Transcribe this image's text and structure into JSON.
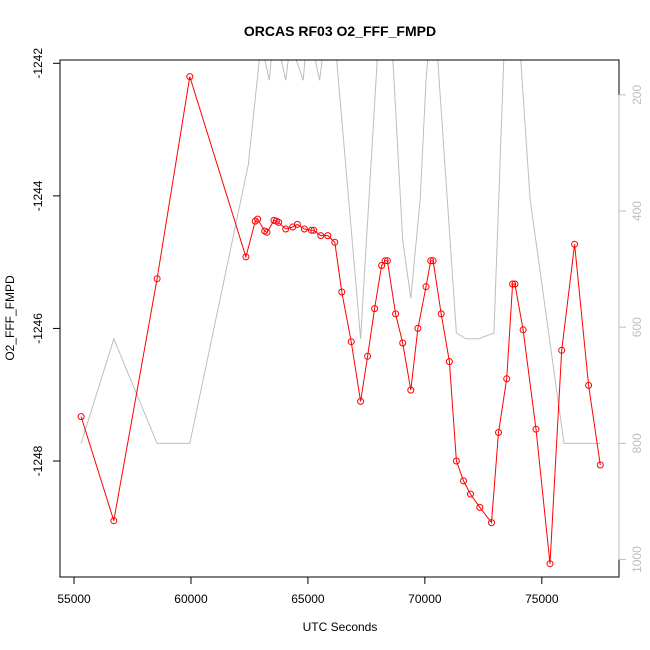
{
  "chart_data": {
    "type": "line",
    "title": "ORCAS RF03 O2_FFF_FMPD",
    "xlabel": "UTC Seconds",
    "ylabel": "O2_FFF_FMPD",
    "xlim": [
      54400,
      78300
    ],
    "ylim": [
      -1249.75,
      -1241.95
    ],
    "x_ticks": [
      55000,
      60000,
      65000,
      70000,
      75000
    ],
    "y_ticks": [
      -1242,
      -1244,
      -1246,
      -1248
    ],
    "y2_ticks": [
      200,
      400,
      600,
      800,
      1000
    ],
    "y2_reversed": true,
    "y2_lim": [
      1030,
      140
    ],
    "colors": {
      "primary": "#ff0000",
      "secondary": "#bebebe",
      "axis": "#000000"
    },
    "series": [
      {
        "role": "primary",
        "marker": "open-circle",
        "x": [
          55300,
          56700,
          58550,
          59950,
          62350,
          62750,
          62850,
          63150,
          63250,
          63550,
          63650,
          63750,
          64050,
          64350,
          64550,
          64850,
          65150,
          65250,
          65550,
          65850,
          66150,
          66450,
          66850,
          67250,
          67550,
          67850,
          68150,
          68300,
          68400,
          68750,
          69050,
          69400,
          69700,
          70050,
          70250,
          70350,
          70700,
          71050,
          71350,
          71650,
          71950,
          72350,
          72850,
          73150,
          73500,
          73750,
          73850,
          74200,
          74750,
          75350,
          75850,
          76400,
          77000,
          77500
        ],
        "y": [
          -1247.33,
          -1248.9,
          -1245.25,
          -1242.2,
          -1244.92,
          -1244.38,
          -1244.35,
          -1244.53,
          -1244.55,
          -1244.37,
          -1244.38,
          -1244.4,
          -1244.5,
          -1244.47,
          -1244.43,
          -1244.5,
          -1244.52,
          -1244.52,
          -1244.6,
          -1244.6,
          -1244.7,
          -1245.45,
          -1246.2,
          -1247.1,
          -1246.42,
          -1245.7,
          -1245.05,
          -1244.98,
          -1244.98,
          -1245.78,
          -1246.22,
          -1246.93,
          -1246.0,
          -1245.37,
          -1244.98,
          -1244.98,
          -1245.78,
          -1246.5,
          -1248.0,
          -1248.3,
          -1248.5,
          -1248.7,
          -1248.93,
          -1247.57,
          -1246.76,
          -1245.33,
          -1245.33,
          -1246.02,
          -1247.52,
          -1249.55,
          -1246.33,
          -1244.73,
          -1246.86,
          -1248.06
        ]
      },
      {
        "role": "secondary",
        "axis": "right",
        "x": [
          55300,
          56700,
          58550,
          59950,
          62450,
          63000,
          63350,
          63550,
          64050,
          64250,
          64800,
          65000,
          65500,
          65700,
          66100,
          67250,
          68050,
          68550,
          69050,
          69400,
          69800,
          70050,
          70250,
          70500,
          71350,
          71750,
          72300,
          72950,
          73400,
          73750,
          74050,
          74500,
          75950,
          76400,
          77000,
          77500
        ],
        "y": [
          800,
          620,
          800,
          800,
          320,
          110,
          175,
          80,
          175,
          110,
          175,
          80,
          175,
          110,
          80,
          620,
          80,
          80,
          450,
          550,
          380,
          175,
          80,
          110,
          610,
          620,
          620,
          610,
          110,
          80,
          110,
          380,
          800,
          800,
          800,
          800
        ]
      }
    ]
  }
}
